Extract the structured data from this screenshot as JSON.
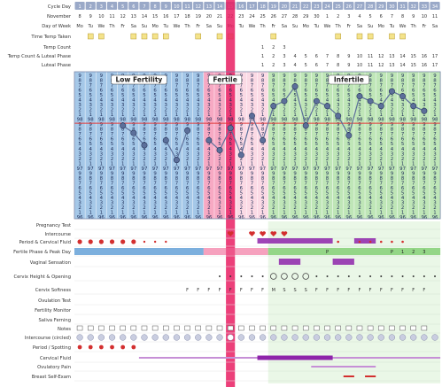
{
  "chart_data": {
    "type": "line",
    "title": "",
    "row_labels": {
      "cycle_day": "Cycle Day",
      "month": "November",
      "day_of_week": "Day of Week",
      "time_temp_taken": "Time Temp Taken",
      "temp_count": "Temp Count",
      "temp_count_luteal": "Temp Count & Luteal Phase",
      "luteal_phase": "Luteal Phase",
      "pregnancy_test": "Pregnancy Test",
      "intercourse": "Intercourse",
      "period_cervical_fluid": "Period & Cervical Fluid",
      "fertile_phase_peak": "Fertile Phase & Peak Day",
      "vaginal_sensation": "Vaginal Sensation",
      "cervix_height_opening": "Cervix Height & Opening",
      "cervix_softness": "Cervix Softness",
      "ovulation_test": "Ovulation Test",
      "fertility_monitor": "Fertility Monitor",
      "saliva_ferning": "Saliva Ferning",
      "notes": "Notes",
      "intercourse_circled": "Intercourse (circled)",
      "period_spotting": "Period / Spotting",
      "cervical_fluid": "Cervical Fluid",
      "ovulatory_pain": "Ovulatory Pain",
      "breast_self_exam": "Breast Self-Exam"
    },
    "cycle_days": [
      1,
      2,
      3,
      4,
      5,
      6,
      7,
      8,
      9,
      10,
      11,
      12,
      13,
      14,
      15,
      16,
      17,
      18,
      19,
      20,
      21,
      22,
      23,
      24,
      25,
      26,
      27,
      28,
      29,
      30,
      31,
      32,
      33,
      34
    ],
    "dates": [
      "8",
      "9",
      "10",
      "11",
      "12",
      "13",
      "14",
      "15",
      "16",
      "17",
      "18",
      "19",
      "20",
      "21",
      "22",
      "23",
      "24",
      "25",
      "26",
      "27",
      "28",
      "29",
      "30",
      "1",
      "2",
      "3",
      "4",
      "5",
      "6",
      "7",
      "8",
      "9",
      "10",
      "11"
    ],
    "weekdays": [
      "Mo",
      "Tu",
      "We",
      "Th",
      "Fr",
      "Sa",
      "Su",
      "Mo",
      "Tu",
      "We",
      "Th",
      "Fr",
      "Sa",
      "Su",
      "Mo",
      "Tu",
      "We",
      "Th",
      "Fr",
      "Sa",
      "Su",
      "Mo",
      "Tu",
      "We",
      "Th",
      "Fr",
      "Sa",
      "Su",
      "Mo",
      "Tu",
      "We",
      "Th",
      "Fr",
      "Sa"
    ],
    "temp_count": [
      "",
      "",
      "",
      "",
      "",
      "",
      "",
      "",
      "",
      "",
      "",
      "",
      "",
      "",
      "",
      "",
      "",
      "1",
      "2",
      "3",
      "",
      "",
      "",
      "",
      "",
      "",
      "",
      "",
      "",
      "",
      "",
      "",
      "",
      ""
    ],
    "luteal_count": [
      "",
      "",
      "",
      "",
      "",
      "",
      "",
      "",
      "",
      "",
      "",
      "",
      "",
      "",
      "",
      "",
      "",
      "1",
      "2",
      "3",
      "4",
      "5",
      "6",
      "7",
      "8",
      "9",
      "10",
      "11",
      "12",
      "13",
      "14",
      "15",
      "16",
      "17"
    ],
    "luteal_phase": [
      "",
      "",
      "",
      "",
      "",
      "",
      "",
      "",
      "",
      "",
      "",
      "",
      "",
      "",
      "",
      "",
      "",
      "1",
      "2",
      "3",
      "4",
      "5",
      "6",
      "7",
      "8",
      "9",
      "10",
      "11",
      "12",
      "13",
      "14",
      "15",
      "16",
      "17"
    ],
    "phases": [
      "Low Fertility",
      "Fertile",
      "Infertile"
    ],
    "temperature_scale": [
      "9",
      "8",
      "7",
      "6",
      "5",
      "4",
      "3",
      "2",
      "1",
      "98",
      "9",
      "8",
      "7",
      "6",
      "5",
      "4",
      "3",
      "2",
      "1",
      "97",
      "9",
      "8",
      "7",
      "6",
      "5",
      "4",
      "3",
      "2",
      "1",
      "96"
    ],
    "ylim": [
      96.0,
      99.0
    ],
    "coverline": 97.95,
    "series": [
      {
        "values": [
          null,
          null,
          null,
          null,
          97.9,
          97.75,
          97.5,
          null,
          97.6,
          97.2,
          97.8,
          null,
          97.6,
          97.4,
          97.85,
          97.3,
          98.1,
          97.6,
          98.3,
          98.4,
          98.7,
          97.9,
          98.4,
          98.3,
          98.1,
          97.7,
          98.5,
          98.4,
          98.3,
          98.6,
          98.5,
          98.3,
          98.2,
          null
        ]
      }
    ],
    "cervical_softness": [
      "",
      "",
      "",
      "",
      "",
      "",
      "",
      "",
      "",
      "",
      "F",
      "F",
      "F",
      "F",
      "F",
      "F",
      "F",
      "F",
      "M",
      "S",
      "S",
      "S",
      "F",
      "F",
      "F",
      "F",
      "F",
      "F",
      "F",
      "F",
      "F",
      "F",
      "F",
      ""
    ],
    "fertile_phase_marks": [
      "",
      "",
      "",
      "",
      "",
      "",
      "",
      "",
      "",
      "",
      "",
      "",
      "",
      "",
      "",
      "",
      "",
      "",
      "",
      "",
      "",
      "",
      "",
      "P",
      "",
      "",
      "",
      "",
      "",
      "P",
      "1",
      "2",
      "3",
      ""
    ],
    "legend": ""
  },
  "colors": {
    "header_blue": "#9aa9c8",
    "low_fertility": "#5b9bd5",
    "fertile": "#f06292",
    "peak_day": "#e91e63",
    "infertile": "#8bd17c",
    "temp_line": "#5c6f9a",
    "coverline": "#e23b3b",
    "period": "#d32f2f",
    "fluid": "#8e24aa"
  }
}
